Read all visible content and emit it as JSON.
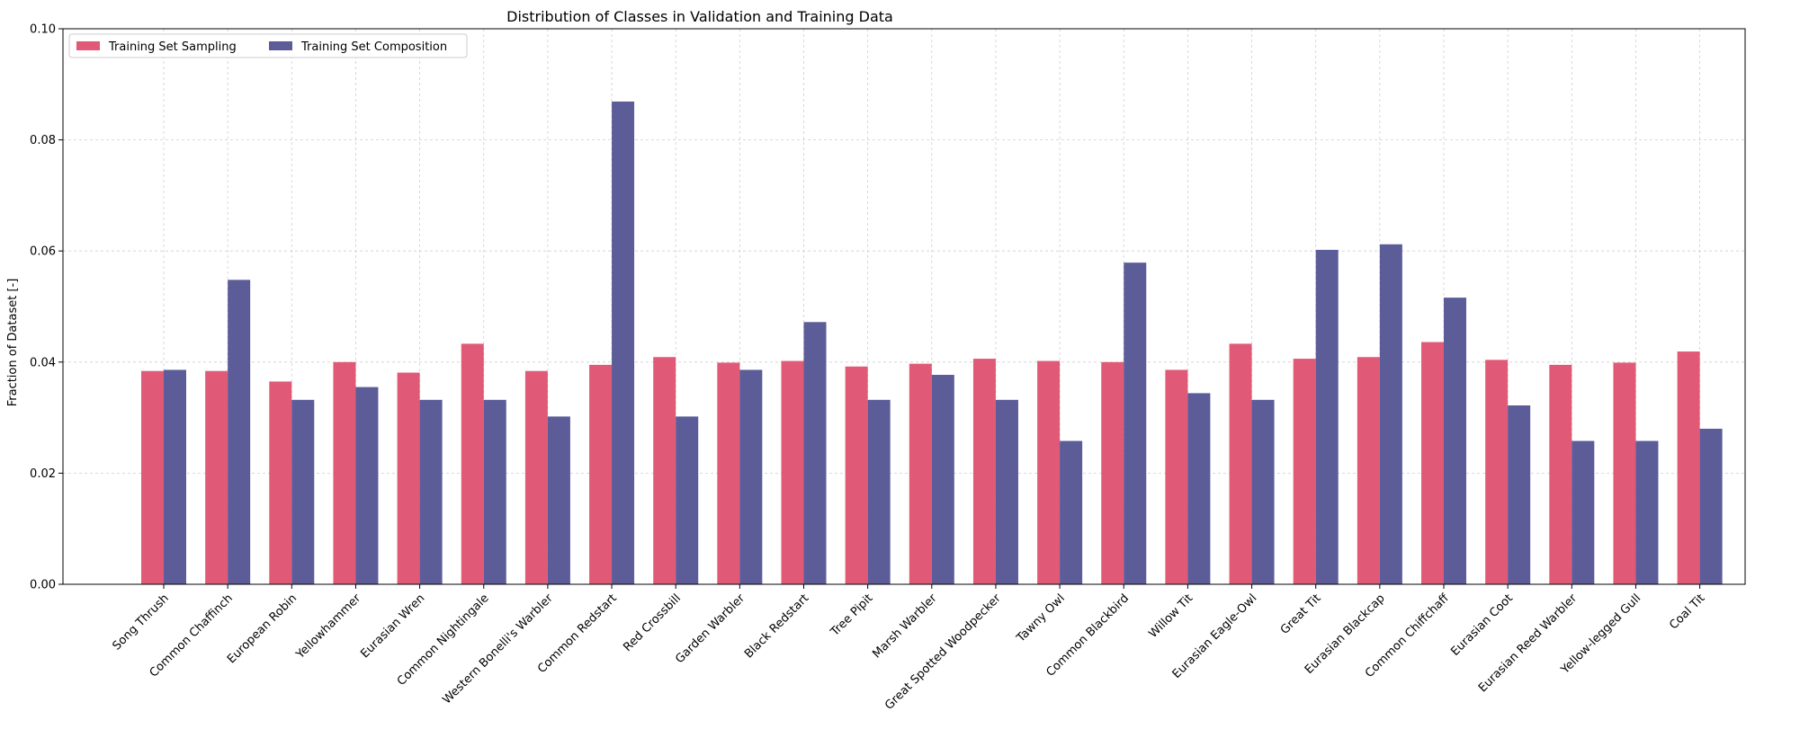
{
  "chart_data": {
    "type": "bar",
    "title": "Distribution of Classes in Validation and Training Data",
    "xlabel": "",
    "ylabel": "Fraction of Dataset [-]",
    "ylim": [
      0,
      0.1
    ],
    "yticks": [
      "0.00",
      "0.02",
      "0.04",
      "0.06",
      "0.08",
      "0.10"
    ],
    "grid": true,
    "legend_position": "top-left",
    "categories": [
      "Song Thrush",
      "Common Chaffinch",
      "European Robin",
      "Yellowhammer",
      "Eurasian Wren",
      "Common Nightingale",
      "Western Bonelli's Warbler",
      "Common Redstart",
      "Red Crossbill",
      "Garden Warbler",
      "Black Redstart",
      "Tree Pipit",
      "Marsh Warbler",
      "Great Spotted Woodpecker",
      "Tawny Owl",
      "Common Blackbird",
      "Willow Tit",
      "Eurasian Eagle-Owl",
      "Great Tit",
      "Eurasian Blackcap",
      "Common Chiffchaff",
      "Eurasian Coot",
      "Eurasian Reed Warbler",
      "Yellow-legged Gull",
      "Coal Tit"
    ],
    "series": [
      {
        "name": "Training Set Sampling",
        "color": "#E05A77",
        "values": [
          0.0384,
          0.0384,
          0.0365,
          0.04,
          0.0381,
          0.0433,
          0.0384,
          0.0395,
          0.0409,
          0.0399,
          0.0402,
          0.0392,
          0.0397,
          0.0406,
          0.0402,
          0.04,
          0.0386,
          0.0433,
          0.0406,
          0.0409,
          0.0436,
          0.0404,
          0.0395,
          0.0399,
          0.0419
        ]
      },
      {
        "name": "Training Set Composition",
        "color": "#5B5C98",
        "values": [
          0.0386,
          0.0548,
          0.0332,
          0.0355,
          0.0332,
          0.0332,
          0.0302,
          0.0869,
          0.0302,
          0.0386,
          0.0472,
          0.0332,
          0.0377,
          0.0332,
          0.0258,
          0.0579,
          0.0344,
          0.0332,
          0.0602,
          0.0612,
          0.0516,
          0.0322,
          0.0258,
          0.0258,
          0.028
        ]
      }
    ]
  }
}
